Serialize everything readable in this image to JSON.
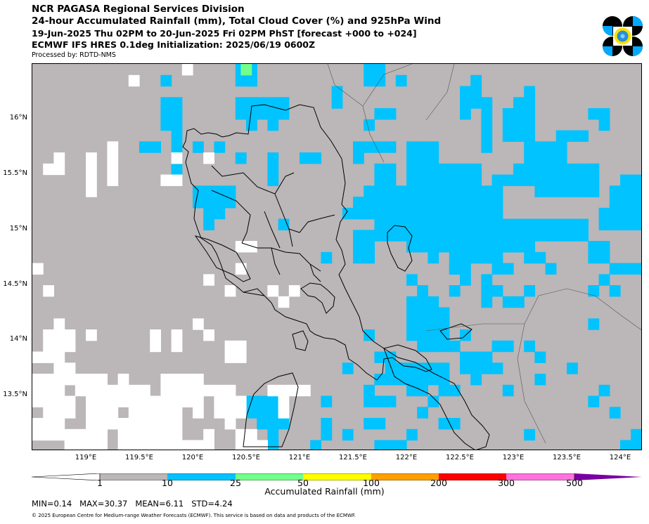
{
  "header": {
    "line1": "NCR PAGASA Regional Services Division",
    "line2": "24-hour Accumulated Rainfall (mm), Total Cloud Cover (%) and 925hPa Wind",
    "line3": "19-Jun-2025 Thu 02PM to 20-Jun-2025 Fri 02PM PhST [forecast +000 to +024]",
    "line4": "ECMWF IFS HRES 0.1deg Initialization: 2025/06/19 0600Z",
    "processed_by": "Processed by: RDTD-NMS"
  },
  "logo_icon": "pagasa-logo-icon",
  "map": {
    "lat_labels": [
      "16°N",
      "15.5°N",
      "15°N",
      "14.5°N",
      "14°N",
      "13.5°N"
    ],
    "lon_labels": [
      "119°E",
      "119.5°E",
      "120°E",
      "120.5°E",
      "121°E",
      "121.5°E",
      "122°E",
      "122.5°E",
      "123°E",
      "123.5°E",
      "124°E"
    ],
    "colors": {
      "below_1": "#ffffff",
      "1_10": "#bbb6b7",
      "10_25": "#00c3ff",
      "25_50": "#73ff8c",
      "50_100": "#ffff00",
      "100_200": "#ff9f00",
      "200_300": "#ff0000",
      "300_500": "#ff73dc",
      "500_plus": "#7800a0"
    }
  },
  "colorbar": {
    "ticks": [
      "1",
      "10",
      "25",
      "50",
      "100",
      "200",
      "300",
      "500"
    ],
    "label": "Accumulated Rainfall (mm)"
  },
  "stats": {
    "min": "MIN=0.14",
    "max": "MAX=30.37",
    "mean": "MEAN=6.11",
    "std": "STD=4.24"
  },
  "footer": {
    "copyright": "© 2025 European Centre for Medium-range Weather Forecasts (ECMWF). This service is based on data and products of the ECMWF."
  }
}
